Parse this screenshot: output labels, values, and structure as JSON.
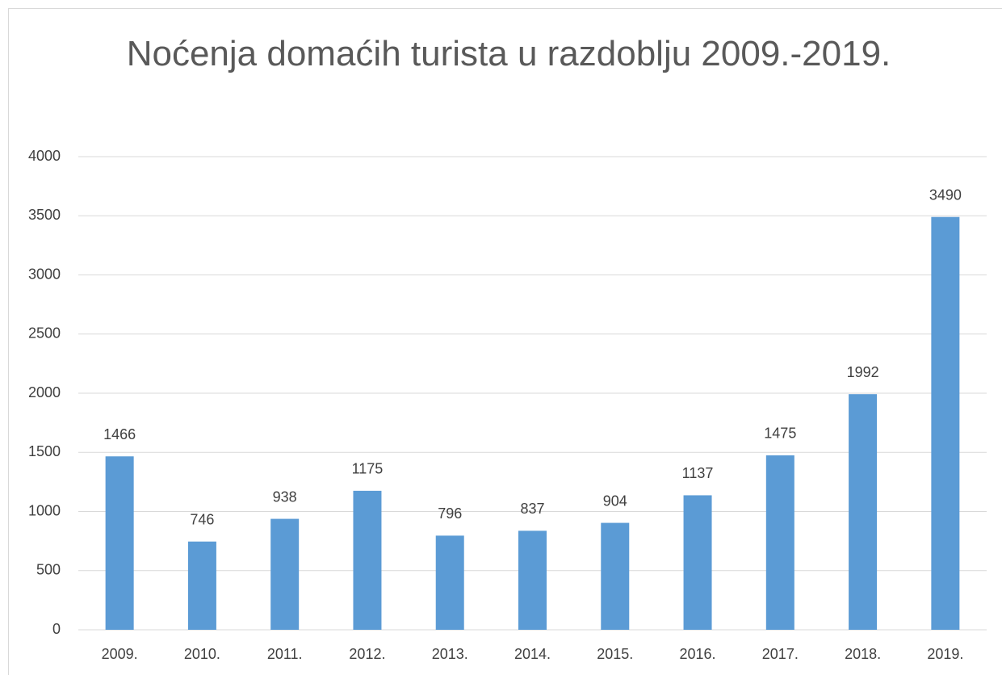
{
  "chart_data": {
    "type": "bar",
    "title": "Noćenja domaćih turista u razdoblju 2009.-2019.",
    "categories": [
      "2009.",
      "2010.",
      "2011.",
      "2012.",
      "2013.",
      "2014.",
      "2015.",
      "2016.",
      "2017.",
      "2018.",
      "2019."
    ],
    "values": [
      1466,
      746,
      938,
      1175,
      796,
      837,
      904,
      1137,
      1475,
      1992,
      3490
    ],
    "color": "#5b9bd5",
    "ylim": [
      0,
      4000
    ],
    "yticks": [
      0,
      500,
      1000,
      1500,
      2000,
      2500,
      3000,
      3500,
      4000
    ],
    "grid": true
  }
}
